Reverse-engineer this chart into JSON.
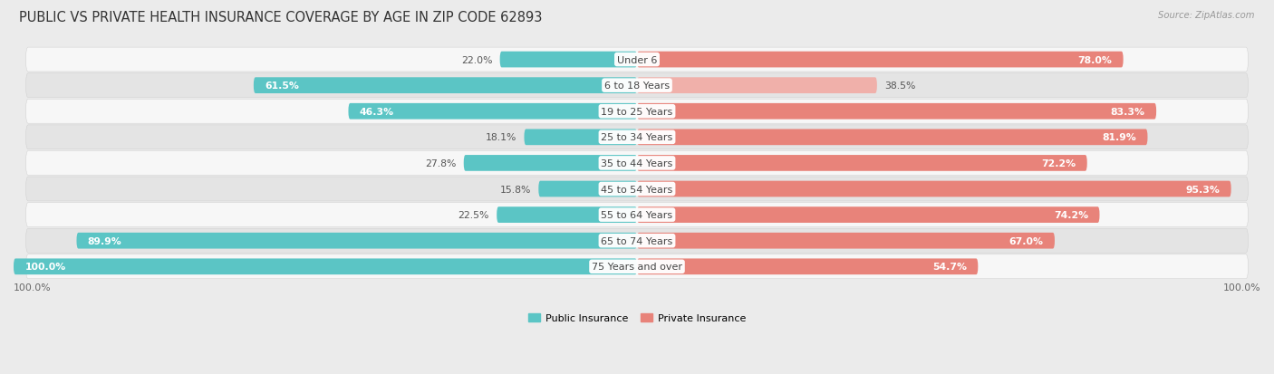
{
  "title": "PUBLIC VS PRIVATE HEALTH INSURANCE COVERAGE BY AGE IN ZIP CODE 62893",
  "source": "Source: ZipAtlas.com",
  "categories": [
    "Under 6",
    "6 to 18 Years",
    "19 to 25 Years",
    "25 to 34 Years",
    "35 to 44 Years",
    "45 to 54 Years",
    "55 to 64 Years",
    "65 to 74 Years",
    "75 Years and over"
  ],
  "public_values": [
    22.0,
    61.5,
    46.3,
    18.1,
    27.8,
    15.8,
    22.5,
    89.9,
    100.0
  ],
  "private_values": [
    78.0,
    38.5,
    83.3,
    81.9,
    72.2,
    95.3,
    74.2,
    67.0,
    54.7
  ],
  "public_color": "#5bc5c5",
  "private_color": "#e8837a",
  "private_color_light": "#f0b0aa",
  "background_color": "#ebebeb",
  "row_bg_white": "#f7f7f7",
  "row_bg_gray": "#e4e4e4",
  "max_value": 100.0,
  "title_fontsize": 10.5,
  "label_fontsize": 8,
  "value_fontsize": 7.8,
  "legend_fontsize": 8,
  "axis_label": "100.0%",
  "private_light_threshold": 50
}
